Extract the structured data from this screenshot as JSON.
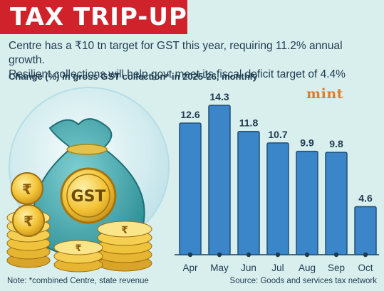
{
  "header": {
    "title": "TAX TRIP-UP",
    "subtitle_line1": "Centre has a ₹10 tn target for GST this year, requiring 11.2% annual growth.",
    "subtitle_line2": "Resilient collections will help govt meet its fiscal deficit target of 4.4%"
  },
  "brand": "mint",
  "bag_label": "GST",
  "coin_symbol": "₹",
  "footer": {
    "note": "Note: *combined Centre, state revenue",
    "source": "Source: Goods and services tax network"
  },
  "colors": {
    "title_bg": "#d0222a",
    "background": "#d9efee",
    "bar": "#3a86c8",
    "bar_edge": "#1f4f78",
    "text": "#1e3b50",
    "brand": "#e07b2c"
  },
  "chart_data": {
    "type": "bar",
    "title": "Change (%) in gross GST collection* in 2025-26, monthly",
    "categories": [
      "Apr",
      "May",
      "Jun",
      "Jul",
      "Aug",
      "Sep",
      "Oct"
    ],
    "values": [
      12.6,
      14.3,
      11.8,
      10.7,
      9.9,
      9.8,
      4.6
    ],
    "value_labels": [
      "12.6",
      "14.3",
      "11.8",
      "10.7",
      "9.9",
      "9.8",
      "4.6"
    ],
    "xlabel": "",
    "ylabel": "",
    "ylim": [
      0,
      14.3
    ],
    "grid": false,
    "data_labels": "above bars"
  }
}
